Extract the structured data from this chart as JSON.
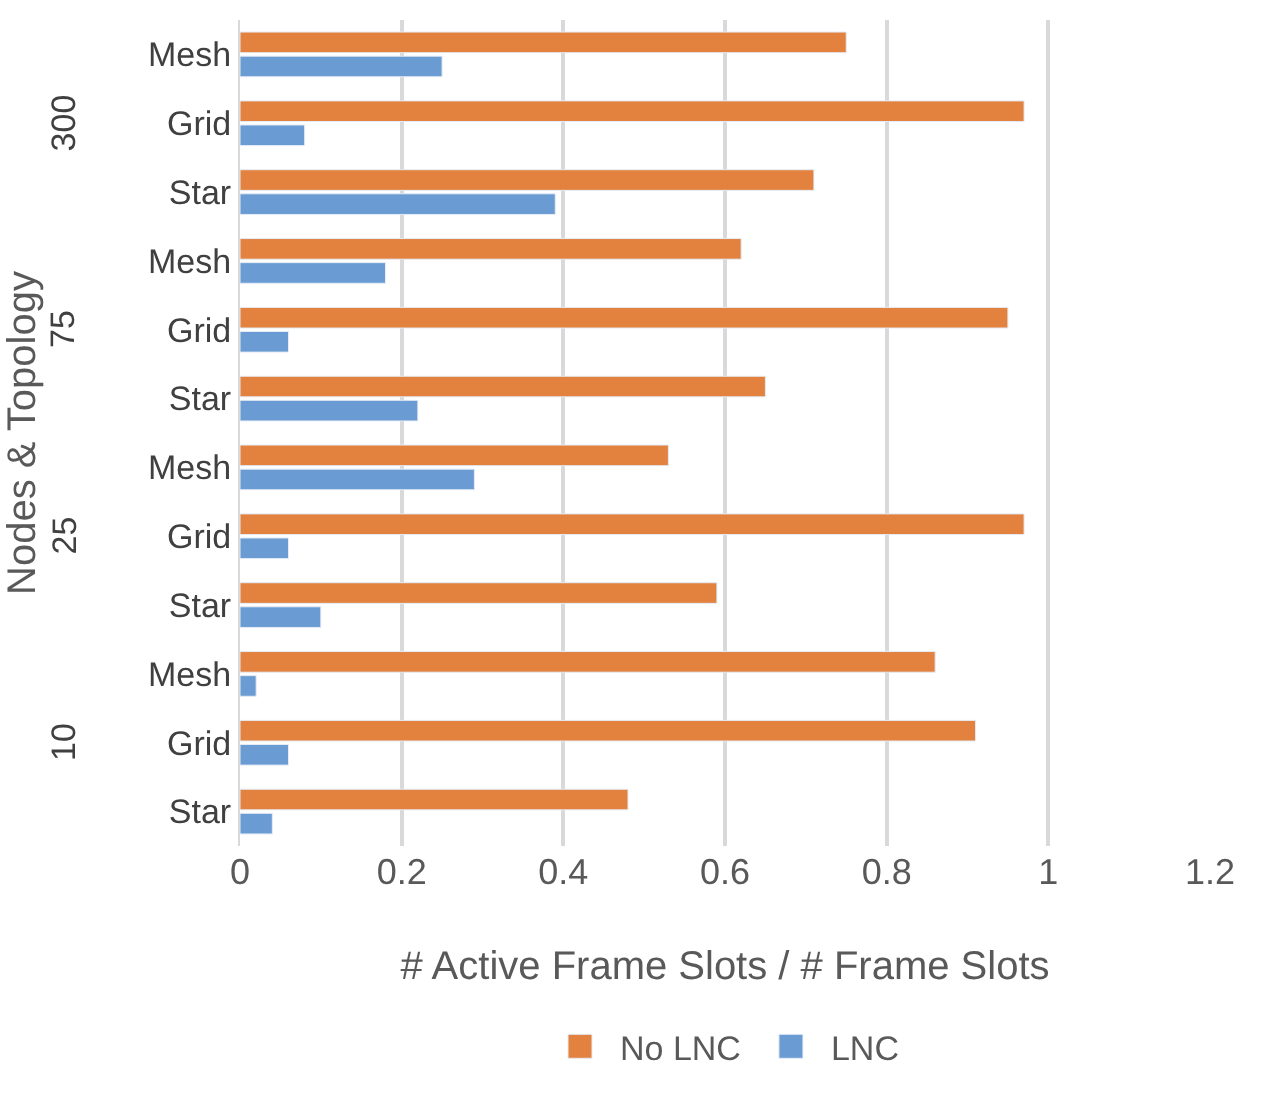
{
  "chart_data": {
    "type": "bar",
    "orientation": "horizontal",
    "xlabel": "# Active Frame Slots / # Frame Slots",
    "ylabel": "Nodes & Topology",
    "categories": [
      "Mesh",
      "Grid",
      "Star",
      "Mesh",
      "Grid",
      "Star",
      "Mesh",
      "Grid",
      "Star",
      "Mesh",
      "Grid",
      "Star"
    ],
    "annotations": [
      "300",
      "75",
      "25",
      "10"
    ],
    "series": [
      {
        "name": "No LNC",
        "color": "#e3823f",
        "values": [
          0.75,
          0.97,
          0.71,
          0.62,
          0.95,
          0.65,
          0.53,
          0.97,
          0.59,
          0.86,
          0.91,
          0.48
        ]
      },
      {
        "name": "LNC",
        "color": "#6a9bd3",
        "values": [
          0.25,
          0.08,
          0.39,
          0.18,
          0.06,
          0.22,
          0.29,
          0.06,
          0.1,
          0.02,
          0.06,
          0.04
        ]
      }
    ],
    "xlim": [
      0,
      1.2
    ],
    "xticks": [
      0,
      0.2,
      0.4,
      0.6,
      0.8,
      1,
      1.2
    ],
    "grid": "x",
    "legend": "bottom"
  }
}
